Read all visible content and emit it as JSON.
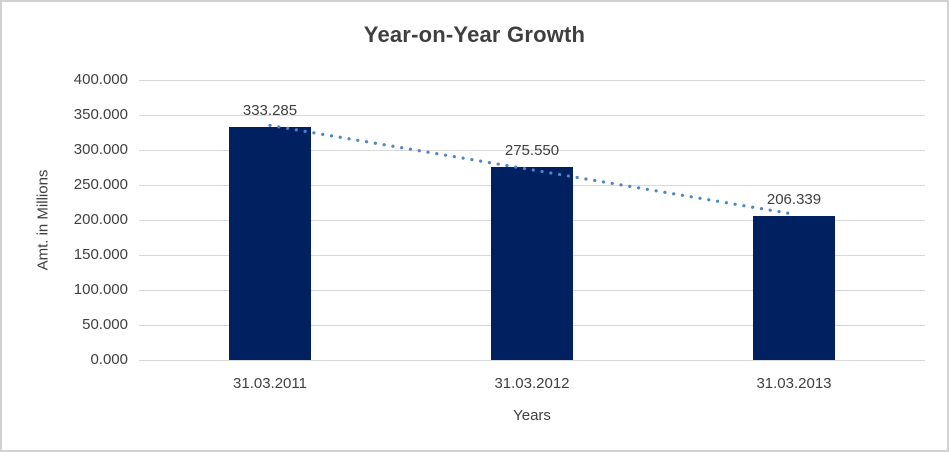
{
  "chart_data": {
    "type": "bar",
    "title": "Year-on-Year Growth",
    "xlabel": "Years",
    "ylabel": "Amt. in Millions",
    "categories": [
      "31.03.2011",
      "31.03.2012",
      "31.03.2013"
    ],
    "values": [
      333.285,
      275.55,
      206.339
    ],
    "value_labels": [
      "333.285",
      "275.550",
      "206.339"
    ],
    "ylim": [
      0,
      400
    ],
    "ytick_step": 50,
    "ytick_labels_top_to_bottom": [
      "400.000",
      "350.000",
      "300.000",
      "250.000",
      "200.000",
      "150.000",
      "100.000",
      "50.000",
      "0.000"
    ],
    "grid": true,
    "legend": "none",
    "bar_color": "#002060",
    "trendline": {
      "type": "linear",
      "style": "dotted",
      "color": "#4a86c8"
    },
    "gridline_color": "#d9d9d9",
    "text_color": "#404040",
    "title_color": "#3f3f3f"
  }
}
